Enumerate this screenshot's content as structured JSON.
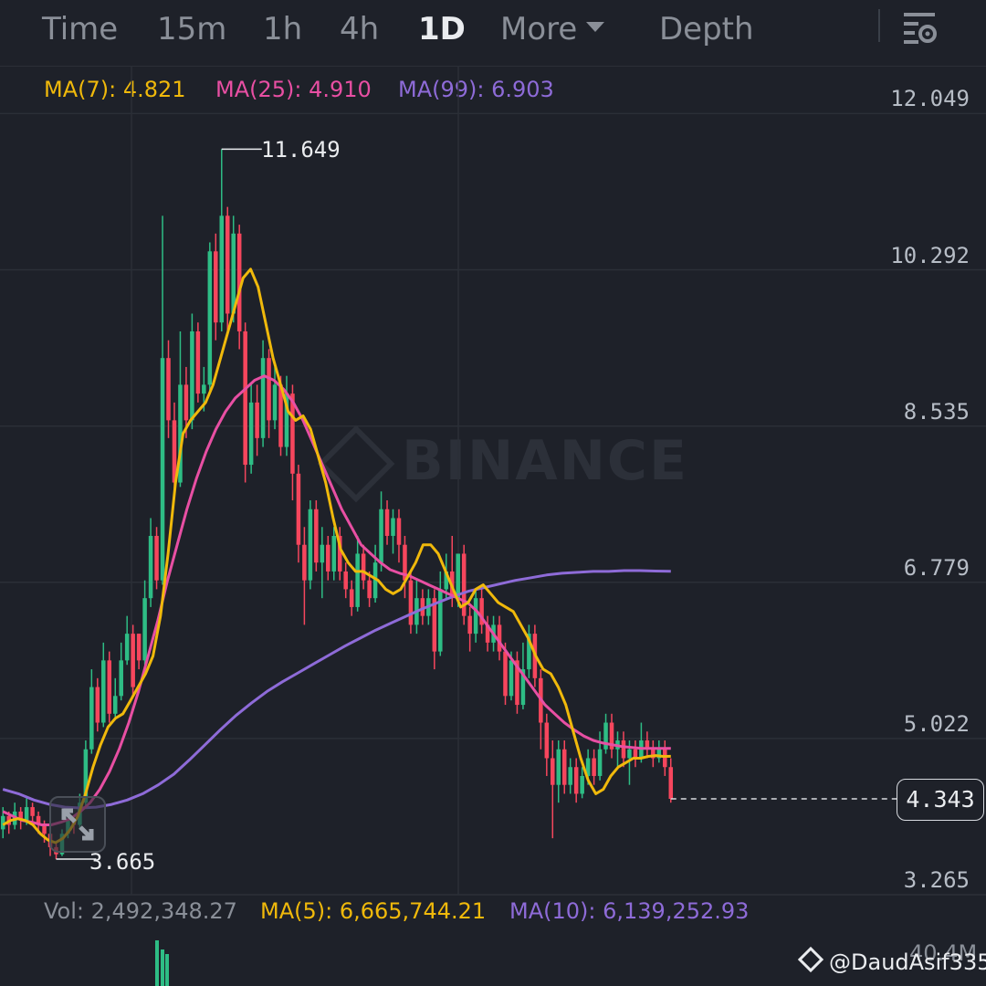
{
  "tabs": [
    {
      "label": "Time",
      "active": false
    },
    {
      "label": "15m",
      "active": false
    },
    {
      "label": "1h",
      "active": false
    },
    {
      "label": "4h",
      "active": false
    },
    {
      "label": "1D",
      "active": true
    },
    {
      "label": "More",
      "active": false
    },
    {
      "label": "Depth",
      "active": false
    }
  ],
  "settings_icon": "chart-settings-icon",
  "ma_legend": {
    "ma7": {
      "label": "MA(7): 4.821",
      "color": "#f0b90b"
    },
    "ma25": {
      "label": "MA(25): 4.910",
      "color": "#e84fa3"
    },
    "ma99": {
      "label": "MA(99): 6.903",
      "color": "#8e6bd8"
    }
  },
  "vol_legend": {
    "vol": {
      "label": "Vol: 2,492,348.27",
      "color": "#8a8f98"
    },
    "ma5": {
      "label": "MA(5): 6,665,744.21",
      "color": "#f0b90b"
    },
    "ma10": {
      "label": "MA(10): 6,139,252.93",
      "color": "#8e6bd8"
    }
  },
  "watermark": "BINANCE",
  "credit": "@DaudAsif335",
  "vol_axis_label": "40.4M",
  "colors": {
    "up": "#2ebd85",
    "down": "#f6465d",
    "grid": "#2b2f37",
    "background": "#1e2129"
  },
  "chart_data": {
    "type": "candlestick",
    "interval": "1D",
    "y_axis_ticks": [
      12.049,
      10.292,
      8.535,
      6.779,
      5.022,
      3.265
    ],
    "y_axis_labels": [
      "12.049",
      "10.292",
      "8.535",
      "6.779",
      "5.022",
      "3.265"
    ],
    "ylim": [
      3.265,
      12.049
    ],
    "high_marker": {
      "label": "11.649",
      "value": 11.649
    },
    "low_marker": {
      "label": "3.665",
      "value": 3.665
    },
    "last_price": {
      "label": "4.343",
      "value": 4.343
    },
    "grid": true,
    "candles": [
      [
        4.0,
        4.15,
        4.25,
        3.9
      ],
      [
        4.15,
        4.05,
        4.2,
        3.95
      ],
      [
        4.05,
        4.2,
        4.3,
        4.0
      ],
      [
        4.2,
        4.1,
        4.25,
        4.0
      ],
      [
        4.1,
        4.25,
        4.35,
        4.05
      ],
      [
        4.25,
        4.15,
        4.3,
        4.05
      ],
      [
        4.15,
        4.05,
        4.2,
        3.95
      ],
      [
        4.05,
        3.95,
        4.1,
        3.85
      ],
      [
        3.95,
        3.8,
        4.0,
        3.7
      ],
      [
        3.8,
        3.72,
        3.85,
        3.665
      ],
      [
        3.72,
        3.95,
        4.0,
        3.7
      ],
      [
        3.95,
        4.1,
        4.2,
        3.9
      ],
      [
        4.1,
        4.05,
        4.15,
        3.95
      ],
      [
        4.05,
        4.3,
        4.4,
        4.0
      ],
      [
        4.3,
        4.9,
        5.0,
        4.25
      ],
      [
        4.9,
        5.6,
        5.8,
        4.85
      ],
      [
        5.6,
        5.2,
        5.7,
        5.1
      ],
      [
        5.2,
        5.9,
        6.1,
        5.15
      ],
      [
        5.9,
        5.3,
        6.0,
        5.2
      ],
      [
        5.3,
        5.5,
        5.7,
        5.25
      ],
      [
        5.5,
        5.9,
        6.1,
        5.45
      ],
      [
        5.9,
        6.2,
        6.4,
        5.85
      ],
      [
        6.2,
        5.6,
        6.3,
        5.5
      ],
      [
        6.2,
        5.9,
        6.2,
        5.8
      ],
      [
        5.9,
        6.6,
        6.8,
        5.85
      ],
      [
        6.6,
        7.3,
        7.5,
        6.5
      ],
      [
        7.3,
        6.8,
        7.4,
        6.7
      ],
      [
        6.8,
        9.3,
        10.9,
        6.75
      ],
      [
        9.3,
        8.6,
        9.5,
        8.4
      ],
      [
        8.6,
        7.9,
        8.8,
        7.8
      ],
      [
        7.9,
        9.0,
        9.6,
        7.85
      ],
      [
        9.0,
        8.6,
        9.2,
        8.4
      ],
      [
        8.6,
        9.6,
        9.8,
        8.5
      ],
      [
        9.6,
        8.9,
        9.7,
        8.8
      ],
      [
        8.9,
        9.0,
        9.2,
        8.7
      ],
      [
        9.0,
        10.5,
        10.6,
        8.9
      ],
      [
        10.5,
        9.7,
        10.7,
        9.5
      ],
      [
        9.7,
        10.9,
        11.649,
        9.6
      ],
      [
        10.9,
        9.8,
        11.0,
        9.6
      ],
      [
        9.8,
        10.7,
        10.9,
        9.7
      ],
      [
        10.7,
        9.6,
        10.8,
        9.4
      ],
      [
        9.6,
        8.1,
        9.7,
        7.9
      ],
      [
        8.1,
        8.8,
        9.0,
        8.0
      ],
      [
        8.8,
        8.4,
        9.0,
        8.2
      ],
      [
        8.4,
        9.3,
        9.5,
        8.3
      ],
      [
        9.3,
        8.6,
        9.4,
        8.4
      ],
      [
        8.6,
        9.0,
        9.2,
        8.5
      ],
      [
        9.0,
        8.3,
        9.1,
        8.2
      ],
      [
        8.3,
        8.9,
        9.1,
        8.2
      ],
      [
        8.9,
        8.0,
        9.0,
        7.7
      ],
      [
        8.0,
        7.2,
        8.1,
        7.0
      ],
      [
        7.2,
        6.8,
        7.4,
        6.3
      ],
      [
        6.8,
        7.6,
        7.7,
        6.7
      ],
      [
        7.6,
        7.0,
        7.7,
        6.9
      ],
      [
        7.0,
        7.2,
        7.4,
        6.6
      ],
      [
        7.2,
        6.9,
        7.3,
        6.8
      ],
      [
        6.9,
        7.3,
        7.4,
        6.8
      ],
      [
        7.3,
        6.9,
        7.4,
        6.8
      ],
      [
        6.9,
        6.7,
        7.0,
        6.6
      ],
      [
        6.7,
        6.5,
        6.8,
        6.4
      ],
      [
        6.5,
        7.1,
        7.3,
        6.45
      ],
      [
        7.1,
        6.8,
        7.2,
        6.7
      ],
      [
        6.8,
        6.6,
        6.9,
        6.5
      ],
      [
        6.6,
        7.0,
        7.2,
        6.55
      ],
      [
        7.0,
        7.6,
        7.8,
        6.9
      ],
      [
        7.6,
        7.3,
        7.7,
        7.2
      ],
      [
        7.3,
        7.5,
        7.6,
        7.1
      ],
      [
        7.5,
        7.2,
        7.6,
        7.0
      ],
      [
        7.2,
        6.8,
        7.3,
        6.6
      ],
      [
        6.8,
        6.3,
        6.9,
        6.2
      ],
      [
        6.3,
        6.6,
        6.8,
        6.2
      ],
      [
        6.6,
        6.4,
        6.7,
        6.3
      ],
      [
        6.4,
        6.6,
        6.7,
        6.3
      ],
      [
        6.6,
        6.0,
        6.7,
        5.8
      ],
      [
        6.0,
        6.7,
        6.9,
        5.95
      ],
      [
        6.7,
        6.9,
        7.1,
        6.6
      ],
      [
        6.9,
        6.6,
        7.3,
        6.5
      ],
      [
        6.6,
        7.1,
        7.1,
        6.5
      ],
      [
        7.1,
        6.4,
        7.2,
        6.3
      ],
      [
        6.4,
        6.2,
        6.5,
        6.0
      ],
      [
        6.2,
        6.6,
        6.7,
        6.1
      ],
      [
        6.6,
        6.3,
        6.7,
        6.2
      ],
      [
        6.3,
        6.1,
        6.4,
        6.0
      ],
      [
        6.1,
        6.3,
        6.4,
        6.0
      ],
      [
        6.3,
        6.0,
        6.4,
        5.9
      ],
      [
        6.0,
        5.5,
        6.1,
        5.4
      ],
      [
        5.5,
        5.9,
        6.0,
        5.45
      ],
      [
        5.9,
        5.4,
        6.0,
        5.3
      ],
      [
        5.4,
        5.8,
        6.1,
        5.35
      ],
      [
        5.8,
        6.2,
        6.3,
        5.7
      ],
      [
        6.2,
        5.7,
        6.3,
        5.6
      ],
      [
        5.7,
        5.2,
        5.8,
        4.9
      ],
      [
        5.2,
        4.8,
        5.3,
        4.6
      ],
      [
        4.8,
        4.5,
        5.0,
        3.9
      ],
      [
        4.5,
        4.9,
        5.0,
        4.3
      ],
      [
        4.9,
        4.5,
        5.0,
        4.4
      ],
      [
        4.5,
        4.7,
        4.8,
        4.4
      ],
      [
        4.7,
        4.4,
        4.8,
        4.3
      ],
      [
        4.4,
        4.6,
        4.7,
        4.35
      ],
      [
        4.6,
        4.8,
        4.9,
        4.5
      ],
      [
        4.8,
        4.6,
        4.9,
        4.5
      ],
      [
        4.6,
        4.9,
        5.1,
        4.55
      ],
      [
        4.9,
        5.2,
        5.3,
        4.85
      ],
      [
        5.2,
        4.9,
        5.3,
        4.8
      ],
      [
        4.9,
        5.0,
        5.1,
        4.7
      ],
      [
        5.0,
        4.8,
        5.1,
        4.7
      ],
      [
        4.8,
        4.9,
        5.0,
        4.5
      ],
      [
        4.9,
        4.8,
        5.0,
        4.7
      ],
      [
        4.8,
        5.0,
        5.2,
        4.75
      ],
      [
        5.0,
        4.9,
        5.1,
        4.8
      ],
      [
        4.9,
        4.8,
        5.0,
        4.7
      ],
      [
        4.8,
        4.9,
        5.0,
        4.75
      ],
      [
        4.9,
        4.7,
        5.0,
        4.6
      ],
      [
        4.7,
        4.343,
        4.8,
        4.3
      ]
    ],
    "ma7": [
      4.05,
      4.1,
      4.12,
      4.1,
      4.05,
      3.95,
      3.88,
      3.85,
      3.9,
      4.0,
      4.15,
      4.4,
      4.7,
      4.95,
      5.15,
      5.25,
      5.3,
      5.45,
      5.6,
      5.75,
      5.95,
      6.4,
      7.1,
      7.9,
      8.45,
      8.6,
      8.7,
      8.8,
      9.0,
      9.3,
      9.6,
      9.9,
      10.2,
      10.3,
      10.1,
      9.7,
      9.3,
      9.0,
      8.7,
      8.6,
      8.65,
      8.5,
      8.2,
      7.9,
      7.5,
      7.15,
      7.0,
      6.9,
      6.9,
      6.85,
      6.8,
      6.7,
      6.65,
      6.7,
      6.85,
      7.0,
      7.2,
      7.2,
      7.1,
      6.9,
      6.7,
      6.5,
      6.55,
      6.7,
      6.75,
      6.65,
      6.55,
      6.5,
      6.45,
      6.3,
      6.15,
      5.95,
      5.8,
      5.75,
      5.6,
      5.4,
      5.1,
      4.8,
      4.55,
      4.4,
      4.45,
      4.6,
      4.7,
      4.75,
      4.8,
      4.8,
      4.82,
      4.83,
      4.82,
      4.821
    ],
    "ma25": [
      4.2,
      4.15,
      4.1,
      4.08,
      4.05,
      4.05,
      4.08,
      4.12,
      4.2,
      4.3,
      4.45,
      4.65,
      4.9,
      5.2,
      5.55,
      5.95,
      6.35,
      6.8,
      7.2,
      7.6,
      7.95,
      8.25,
      8.5,
      8.7,
      8.85,
      8.95,
      9.05,
      9.1,
      9.05,
      8.95,
      8.8,
      8.6,
      8.35,
      8.1,
      7.85,
      7.6,
      7.4,
      7.2,
      7.1,
      7.0,
      6.92,
      6.88,
      6.85,
      6.8,
      6.75,
      6.7,
      6.65,
      6.6,
      6.55,
      6.45,
      6.3,
      6.15,
      6.0,
      5.85,
      5.7,
      5.55,
      5.4,
      5.3,
      5.2,
      5.12,
      5.05,
      5.0,
      4.97,
      4.95,
      4.93,
      4.92,
      4.91,
      4.91,
      4.91,
      4.91
    ],
    "ma99": [
      4.45,
      4.4,
      4.33,
      4.28,
      4.25,
      4.24,
      4.25,
      4.28,
      4.33,
      4.4,
      4.5,
      4.62,
      4.78,
      4.95,
      5.12,
      5.28,
      5.42,
      5.55,
      5.66,
      5.76,
      5.86,
      5.96,
      6.06,
      6.15,
      6.24,
      6.32,
      6.4,
      6.48,
      6.55,
      6.62,
      6.68,
      6.72,
      6.76,
      6.8,
      6.83,
      6.86,
      6.88,
      6.89,
      6.9,
      6.9,
      6.91,
      6.91,
      6.905,
      6.903
    ]
  }
}
